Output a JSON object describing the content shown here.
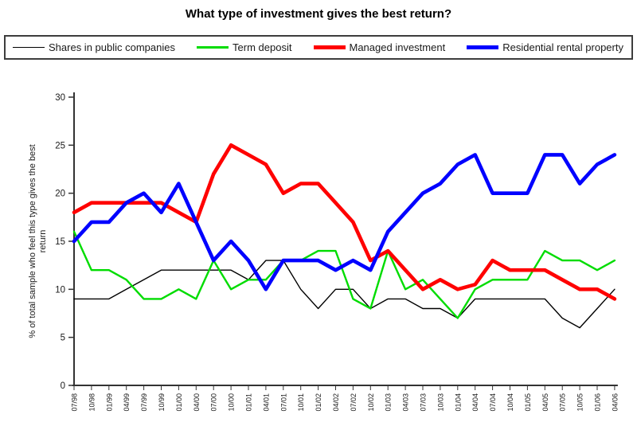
{
  "chart_data": {
    "type": "line",
    "title": "What type of investment gives the best return?",
    "ylabel": "% of total sample who feel this type gives the best return",
    "ylabel_lines": [
      "% of total sample who feel this type gives the best",
      "return"
    ],
    "xlabel": "",
    "ylim": [
      0,
      30
    ],
    "y_ticks": [
      0,
      5,
      10,
      15,
      20,
      25,
      30
    ],
    "grid": false,
    "legend_position": "top",
    "axis_color": "#333333",
    "tick_label_color": "#1a1a1a",
    "categories": [
      "07/98",
      "10/98",
      "01/99",
      "04/99",
      "07/99",
      "10/99",
      "01/00",
      "04/00",
      "07/00",
      "10/00",
      "01/01",
      "04/01",
      "07/01",
      "10/01",
      "01/02",
      "04/02",
      "07/02",
      "10/02",
      "01/03",
      "04/03",
      "07/03",
      "10/03",
      "01/04",
      "04/04",
      "07/04",
      "10/04",
      "01/05",
      "04/05",
      "07/05",
      "10/05",
      "01/06",
      "04/06"
    ],
    "series": [
      {
        "name": "Shares in public companies",
        "color": "#000000",
        "line_width": 1.4,
        "values": [
          9,
          9,
          9,
          10,
          11,
          12,
          12,
          12,
          12,
          12,
          11,
          13,
          13,
          10,
          8,
          10,
          10,
          8,
          9,
          9,
          8,
          8,
          7,
          9,
          9,
          9,
          9,
          9,
          7,
          6,
          8,
          10
        ]
      },
      {
        "name": "Term deposit",
        "color": "#00DC00",
        "line_width": 2.4,
        "values": [
          16,
          12,
          12,
          11,
          9,
          9,
          10,
          9,
          13,
          10,
          11,
          11,
          13,
          13,
          14,
          14,
          9,
          8,
          14,
          10,
          11,
          9,
          7,
          10,
          11,
          11,
          11,
          14,
          13,
          13,
          12,
          13
        ]
      },
      {
        "name": "Managed investment",
        "color": "#FF0000",
        "line_width": 4.6,
        "values": [
          18,
          19,
          19,
          19,
          19,
          19,
          18,
          17,
          22,
          25,
          24,
          23,
          20,
          21,
          21,
          19,
          17,
          13,
          14,
          12,
          10,
          11,
          10,
          10.5,
          13,
          12,
          12,
          12,
          11,
          10,
          10,
          9
        ]
      },
      {
        "name": "Residential rental property",
        "color": "#0000FF",
        "line_width": 4.6,
        "values": [
          15,
          17,
          17,
          19,
          20,
          18,
          21,
          17,
          13,
          15,
          13,
          10,
          13,
          13,
          13,
          12,
          13,
          12,
          16,
          18,
          20,
          21,
          23,
          24,
          20,
          20,
          20,
          24,
          24,
          21,
          23,
          24
        ]
      }
    ]
  }
}
